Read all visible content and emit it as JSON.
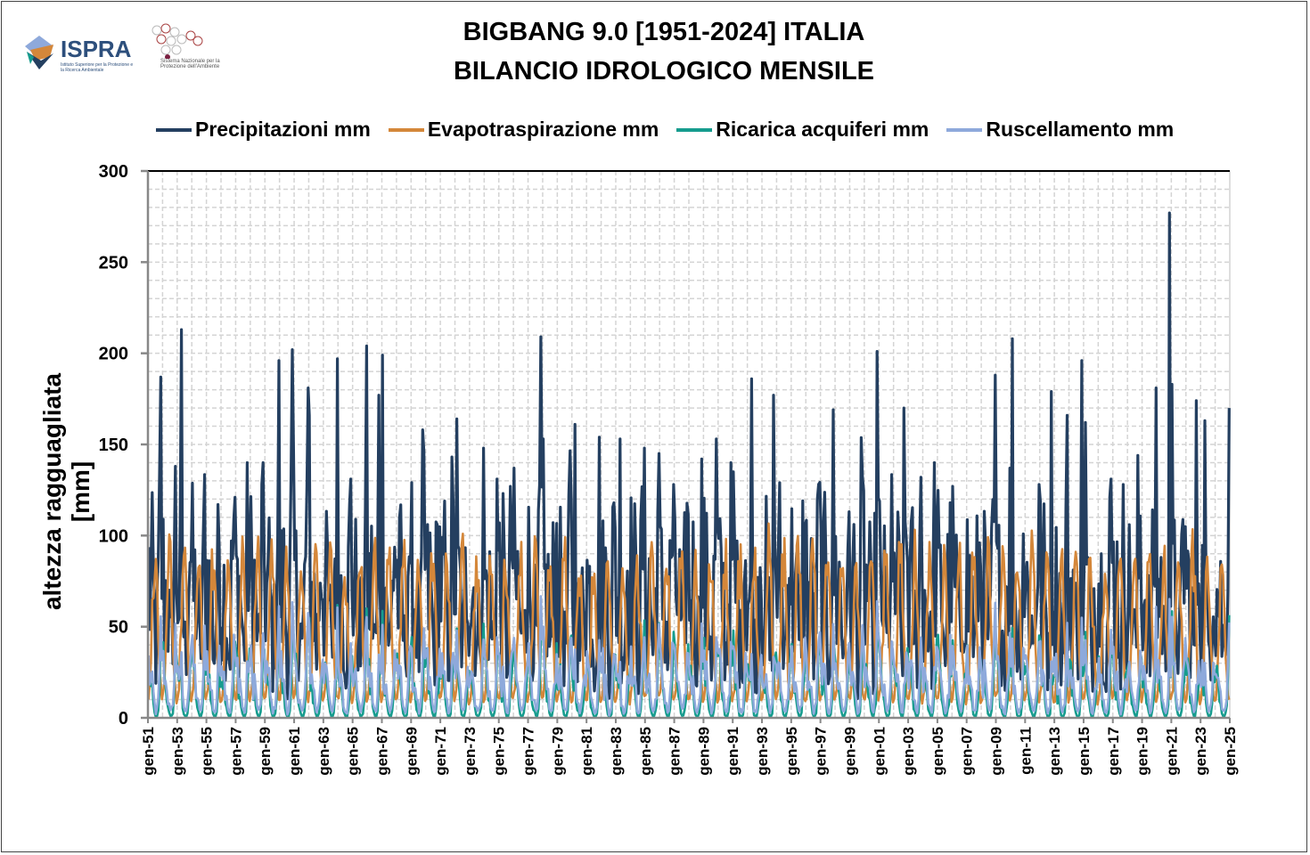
{
  "header": {
    "title_line1": "BIGBANG 9.0 [1951-2024] ITALIA",
    "title_line2": "BILANCIO IDROLOGICO MENSILE",
    "logo_ispra": "ISPRA",
    "logo_ispra_sub": "Istituto Superiore per la Protezione e la Ricerca Ambientale",
    "logo_snpa": "Sistema Nazionale per la Protezione dell'Ambiente"
  },
  "chart_data": {
    "type": "line",
    "title": "BIGBANG 9.0 [1951-2024] ITALIA - BILANCIO IDROLOGICO MENSILE",
    "xlabel": "",
    "ylabel": "altezza ragguagliata [mm]",
    "ylim": [
      0,
      300
    ],
    "yticks": [
      0,
      50,
      100,
      150,
      200,
      250,
      300
    ],
    "grid": true,
    "legend_position": "top",
    "x_start_year": 1951,
    "x_end_year": 2024,
    "xtick_labels": [
      "gen-51",
      "gen-53",
      "gen-55",
      "gen-57",
      "gen-59",
      "gen-61",
      "gen-63",
      "gen-65",
      "gen-67",
      "gen-69",
      "gen-71",
      "gen-73",
      "gen-75",
      "gen-77",
      "gen-79",
      "gen-81",
      "gen-83",
      "gen-85",
      "gen-87",
      "gen-89",
      "gen-91",
      "gen-93",
      "gen-95",
      "gen-97",
      "gen-99",
      "gen-01",
      "gen-03",
      "gen-05",
      "gen-07",
      "gen-09",
      "gen-11",
      "gen-13",
      "gen-15",
      "gen-17",
      "gen-19",
      "gen-21",
      "gen-23",
      "gen-25"
    ],
    "series": [
      {
        "name": "Precipitazioni mm",
        "color": "#243F60",
        "monthly_climatology": [
          85,
          75,
          75,
          80,
          70,
          55,
          40,
          50,
          75,
          100,
          115,
          95
        ],
        "annual_peak": [
          187,
          138,
          213,
          103,
          117,
          121,
          140,
          140,
          196,
          202,
          181,
          166,
          197,
          131,
          204,
          177,
          199,
          85,
          158,
          106,
          118,
          164,
          148,
          131,
          127,
          137,
          209,
          153,
          122,
          161,
          154,
          118,
          153,
          148,
          145,
          128,
          109,
          142,
          153,
          140,
          135,
          186,
          177,
          129,
          119,
          120,
          169,
          92,
          132,
          201,
          75,
          170,
          132,
          140,
          118,
          127,
          96,
          188,
          137,
          208,
          128,
          179,
          166,
          196,
          162,
          131,
          128,
          144,
          181,
          277,
          183,
          174,
          163,
          170
        ]
      },
      {
        "name": "Evapotraspirazione mm",
        "color": "#D4873A",
        "monthly_climatology": [
          12,
          18,
          35,
          55,
          80,
          90,
          85,
          70,
          45,
          28,
          15,
          10
        ]
      },
      {
        "name": "Ricarica acquiferi mm",
        "color": "#169C8E",
        "monthly_climatology": [
          35,
          30,
          22,
          15,
          8,
          3,
          1,
          1,
          4,
          15,
          35,
          40
        ]
      },
      {
        "name": "Ruscellamento mm",
        "color": "#8EA9DB",
        "monthly_climatology": [
          35,
          30,
          25,
          22,
          15,
          8,
          4,
          5,
          12,
          25,
          45,
          40
        ]
      }
    ]
  }
}
